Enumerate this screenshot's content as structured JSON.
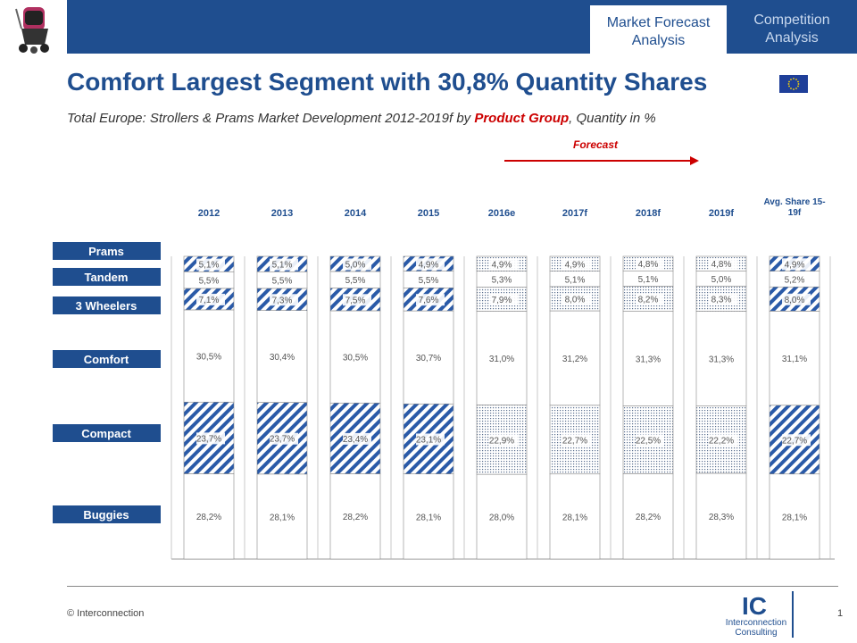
{
  "header": {
    "tabs": [
      {
        "label_line1": "Market Forecast",
        "label_line2": "Analysis",
        "active": true
      },
      {
        "label_line1": "Competition",
        "label_line2": "Analysis",
        "active": false
      }
    ],
    "colors": {
      "brand": "#1f4e8f",
      "accent": "#cc0000"
    }
  },
  "title": "Comfort Largest Segment with 30,8% Quantity Shares",
  "subtitle": {
    "prefix": "Total Europe: Strollers & Prams Market Development 2012-2019f by ",
    "highlight": "Product Group",
    "suffix": ", Quantity in %"
  },
  "forecast_label": "Forecast",
  "chart_data": {
    "type": "bar",
    "stacked": true,
    "categories": [
      "2012",
      "2013",
      "2014",
      "2015",
      "2016e",
      "2017f",
      "2018f",
      "2019f",
      "Avg. Share 15-19f"
    ],
    "series": [
      {
        "name": "Buggies",
        "values": [
          28.2,
          28.1,
          28.2,
          28.1,
          28.0,
          28.1,
          28.2,
          28.3,
          28.1
        ],
        "labels": [
          "28,2%",
          "28,1%",
          "28,2%",
          "28,1%",
          "28,0%",
          "28,1%",
          "28,2%",
          "28,3%",
          "28,1%"
        ]
      },
      {
        "name": "Compact",
        "values": [
          23.7,
          23.7,
          23.4,
          23.1,
          22.9,
          22.7,
          22.5,
          22.2,
          22.7
        ],
        "labels": [
          "23,7%",
          "23,7%",
          "23,4%",
          "23,1%",
          "22,9%",
          "22,7%",
          "22,5%",
          "22,2%",
          "22,7%"
        ]
      },
      {
        "name": "Comfort",
        "values": [
          30.5,
          30.4,
          30.5,
          30.7,
          31.0,
          31.2,
          31.3,
          31.3,
          31.1
        ],
        "labels": [
          "30,5%",
          "30,4%",
          "30,5%",
          "30,7%",
          "31,0%",
          "31,2%",
          "31,3%",
          "31,3%",
          "31,1%"
        ]
      },
      {
        "name": "3 Wheelers",
        "values": [
          7.1,
          7.3,
          7.5,
          7.6,
          7.9,
          8.0,
          8.2,
          8.3,
          8.0
        ],
        "labels": [
          "7,1%",
          "7,3%",
          "7,5%",
          "7,6%",
          "7,9%",
          "8,0%",
          "8,2%",
          "8,3%",
          "8,0%"
        ]
      },
      {
        "name": "Tandem",
        "values": [
          5.5,
          5.5,
          5.5,
          5.5,
          5.3,
          5.1,
          5.1,
          5.0,
          5.2
        ],
        "labels": [
          "5,5%",
          "5,5%",
          "5,5%",
          "5,5%",
          "5,3%",
          "5,1%",
          "5,1%",
          "5,0%",
          "5,2%"
        ]
      },
      {
        "name": "Prams",
        "values": [
          5.1,
          5.1,
          5.0,
          4.9,
          4.9,
          4.9,
          4.8,
          4.8,
          4.9
        ],
        "labels": [
          "5,1%",
          "5,1%",
          "5,0%",
          "4,9%",
          "4,9%",
          "4,9%",
          "4,8%",
          "4,8%",
          "4,9%"
        ]
      }
    ],
    "ylim": [
      0,
      100
    ],
    "forecast_from_index": 4,
    "legend_placement": "left",
    "colors": {
      "hatch": "#2a5aa8",
      "dots": "#5a6f8f",
      "legend_bg": "#1f4e8f"
    }
  },
  "footer": {
    "copyright": "© Interconnection",
    "page_number": "1",
    "logo_text": "IC",
    "logo_name_line1": "Interconnection",
    "logo_name_line2": "Consulting"
  }
}
